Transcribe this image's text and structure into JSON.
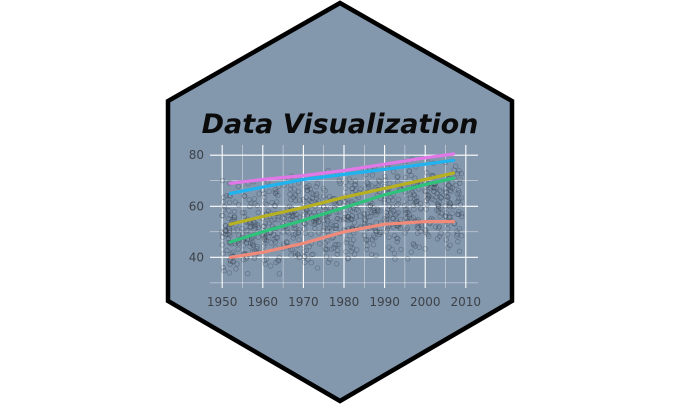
{
  "badge": {
    "title": "Data Visualization",
    "colors": {
      "background": "#ffffff",
      "hex_fill": "#8397ad",
      "hex_border": "#000000",
      "grid": "#ffffff",
      "points": "#2d3a48"
    }
  },
  "chart_data": {
    "type": "scatter",
    "title": "",
    "xlabel": "",
    "ylabel": "",
    "xlim": [
      1947,
      2013
    ],
    "ylim": [
      28,
      84
    ],
    "x_ticks": [
      1950,
      1960,
      1970,
      1980,
      1990,
      2000,
      2010
    ],
    "y_ticks": [
      40,
      60,
      80
    ],
    "grid": true,
    "legend": "none",
    "points_note": "dense scatter of semi-transparent grey circles over x 1952-2007, y 30-82",
    "trend_lines": [
      {
        "color": "#f08a7a",
        "x": [
          1952,
          1960,
          1970,
          1980,
          1990,
          2000,
          2007
        ],
        "y": [
          40,
          42,
          45.5,
          50,
          53,
          54,
          54
        ]
      },
      {
        "color": "#b7b020",
        "x": [
          1952,
          1960,
          1970,
          1980,
          1990,
          2000,
          2007
        ],
        "y": [
          53,
          56,
          59.5,
          63.5,
          67,
          70.5,
          73
        ]
      },
      {
        "color": "#2ec27a",
        "x": [
          1952,
          1960,
          1970,
          1980,
          1990,
          2000,
          2007
        ],
        "y": [
          46,
          50,
          54.5,
          59.5,
          64.5,
          68.5,
          71
        ]
      },
      {
        "color": "#1fb3f0",
        "x": [
          1952,
          1960,
          1970,
          1980,
          1990,
          2000,
          2007
        ],
        "y": [
          65,
          67.5,
          70.5,
          72.5,
          74.5,
          76.5,
          78
        ]
      },
      {
        "color": "#e277e8",
        "x": [
          1952,
          1960,
          1970,
          1980,
          1990,
          2000,
          2007
        ],
        "y": [
          69,
          70.5,
          72,
          74,
          76.5,
          79,
          80.5
        ]
      }
    ]
  }
}
